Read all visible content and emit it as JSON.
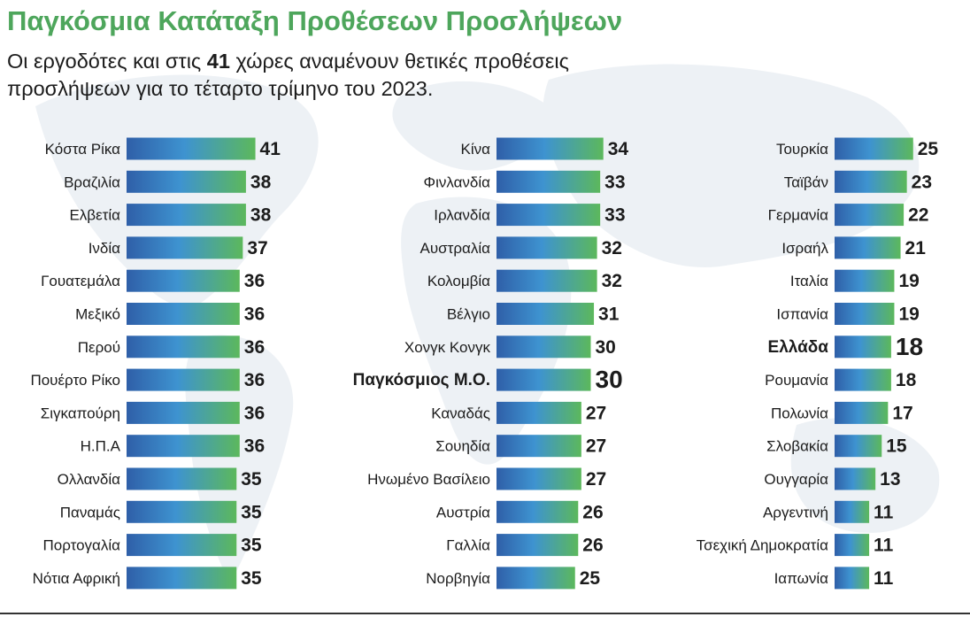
{
  "title": "Παγκόσμια Κατάταξη Προθέσεων Προσλήψεων",
  "subtitle": {
    "before": "Οι εργοδότες και στις ",
    "count": "41",
    "after": " χώρες αναμένουν θετικές προθέσεις προσλήψεων για το τέταρτο τρίμηνο του 2023."
  },
  "colors": {
    "title": "#4ea65c",
    "bar_start": "#2f5fa8",
    "bar_mid": "#3e93d0",
    "bar_end": "#5cb85c",
    "background_map": "#edf1f5"
  },
  "chart_data": {
    "type": "bar",
    "orientation": "horizontal",
    "xlim": [
      0,
      41
    ],
    "grid": false,
    "highlighted": [
      "Παγκόσμιος Μ.Ο.",
      "Ελλάδα"
    ],
    "columns": [
      {
        "categories": [
          "Κόστα Ρίκα",
          "Βραζιλία",
          "Ελβετία",
          "Ινδία",
          "Γουατεμάλα",
          "Μεξικό",
          "Περού",
          "Πουέρτο Ρίκο",
          "Σιγκαπούρη",
          "Η.Π.Α",
          "Ολλανδία",
          "Παναμάς",
          "Πορτογαλία",
          "Νότια Αφρική"
        ],
        "values": [
          41,
          38,
          38,
          37,
          36,
          36,
          36,
          36,
          36,
          36,
          35,
          35,
          35,
          35
        ]
      },
      {
        "categories": [
          "Κίνα",
          "Φινλανδία",
          "Ιρλανδία",
          "Αυστραλία",
          "Κολομβία",
          "Βέλγιο",
          "Χονγκ Κονγκ",
          "Παγκόσμιος Μ.Ο.",
          "Καναδάς",
          "Σουηδία",
          "Ηνωμένο Βασίλειο",
          "Αυστρία",
          "Γαλλία",
          "Νορβηγία"
        ],
        "values": [
          34,
          33,
          33,
          32,
          32,
          31,
          30,
          30,
          27,
          27,
          27,
          26,
          26,
          25
        ]
      },
      {
        "categories": [
          "Τουρκία",
          "Ταϊβάν",
          "Γερμανία",
          "Ισραήλ",
          "Ιταλία",
          "Ισπανία",
          "Ελλάδα",
          "Ρουμανία",
          "Πολωνία",
          "Σλοβακία",
          "Ουγγαρία",
          "Αργεντινή",
          "Τσεχική Δημοκρατία",
          "Ιαπωνία"
        ],
        "values": [
          25,
          23,
          22,
          21,
          19,
          19,
          18,
          18,
          17,
          15,
          13,
          11,
          11,
          11
        ]
      }
    ]
  }
}
